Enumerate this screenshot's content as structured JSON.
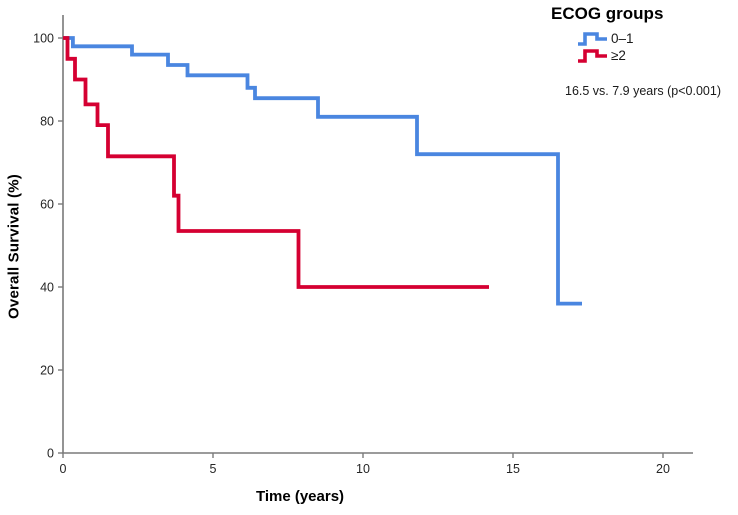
{
  "chart_data": {
    "type": "line",
    "subtype": "kaplan-meier-step",
    "title": "",
    "xlabel": "Time (years)",
    "ylabel": "Overall Survival (%)",
    "xlim": [
      0,
      21
    ],
    "ylim": [
      0,
      100
    ],
    "x_ticks": [
      0,
      5,
      10,
      15,
      20
    ],
    "y_ticks": [
      0,
      20,
      40,
      60,
      80,
      100
    ],
    "grid": false,
    "axis_color": "#7a7a7a",
    "tick_label_color": "#262626",
    "legend": {
      "title": "ECOG groups",
      "position": "top-right",
      "items": [
        {
          "label": "0–1",
          "color": "#4a86e0"
        },
        {
          "label": "≥2",
          "color": "#d50032"
        }
      ]
    },
    "annotation": "16.5 vs. 7.9 years (p<0.001)",
    "series": [
      {
        "name": "ECOG 0–1",
        "color": "#4a86e0",
        "points": [
          [
            0,
            100
          ],
          [
            0.33,
            98
          ],
          [
            2.3,
            96
          ],
          [
            3.5,
            93.5
          ],
          [
            4.15,
            91
          ],
          [
            6.15,
            88
          ],
          [
            6.4,
            85.5
          ],
          [
            8.5,
            81
          ],
          [
            11.8,
            72
          ],
          [
            16.5,
            36
          ]
        ],
        "end_time": 17.3
      },
      {
        "name": "ECOG ≥2",
        "color": "#d50032",
        "points": [
          [
            0,
            100
          ],
          [
            0.15,
            95
          ],
          [
            0.4,
            90
          ],
          [
            0.75,
            84
          ],
          [
            1.15,
            79
          ],
          [
            1.5,
            71.5
          ],
          [
            3.7,
            62
          ],
          [
            3.85,
            53.5
          ],
          [
            7.85,
            40
          ]
        ],
        "end_time": 14.2
      }
    ]
  }
}
